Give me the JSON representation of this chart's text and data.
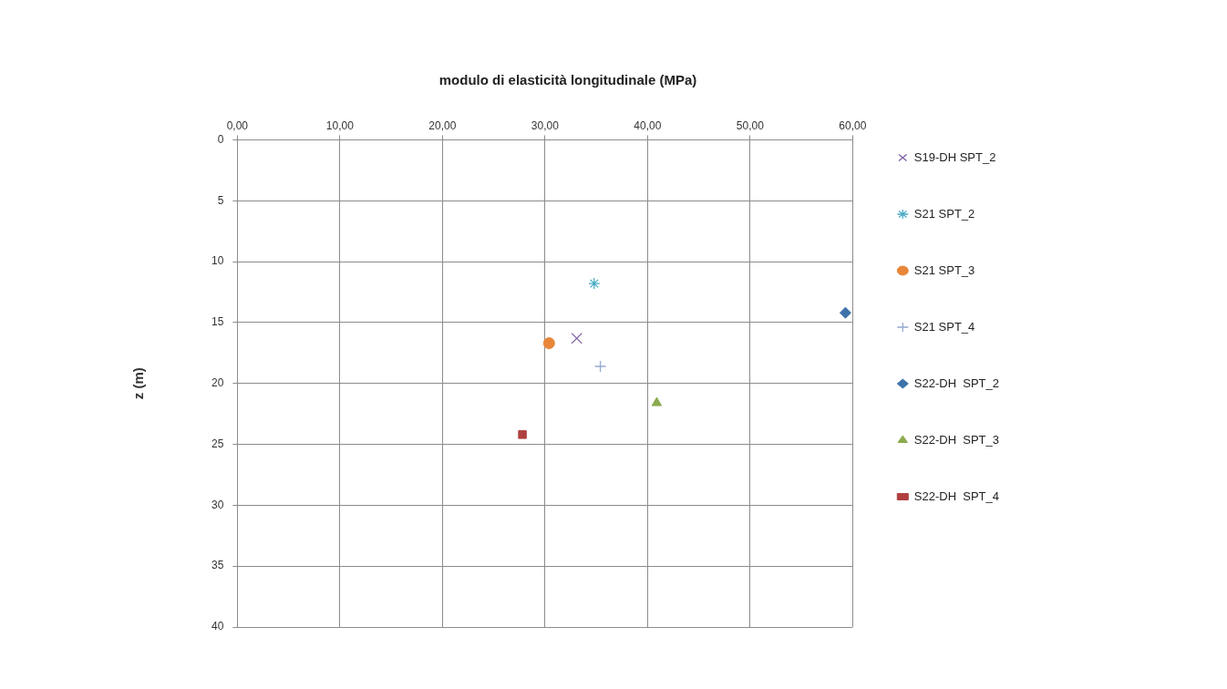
{
  "chart_data": {
    "type": "scatter",
    "title": "modulo di elasticità longitudinale (MPa)",
    "ylabel": "z (m)",
    "xlim": [
      0,
      60
    ],
    "xticks": [
      {
        "value": 0,
        "label": "0,00"
      },
      {
        "value": 10,
        "label": "10,00"
      },
      {
        "value": 20,
        "label": "20,00"
      },
      {
        "value": 30,
        "label": "30,00"
      },
      {
        "value": 40,
        "label": "40,00"
      },
      {
        "value": 50,
        "label": "50,00"
      },
      {
        "value": 60,
        "label": "60,00"
      }
    ],
    "ylim": [
      40,
      0
    ],
    "yticks": [
      0,
      5,
      10,
      15,
      20,
      25,
      30,
      35,
      40
    ],
    "grid": true,
    "legend": "right",
    "series": [
      {
        "name": "S19-DH SPT_2",
        "color": "#7e5ea0",
        "marker": "x",
        "x": [
          33.1
        ],
        "values": [
          16.3
        ]
      },
      {
        "name": "S21 SPT_2",
        "color": "#4bacc6",
        "marker": "cross",
        "x": [
          34.8
        ],
        "values": [
          11.8
        ]
      },
      {
        "name": "S21 SPT_3",
        "color": "#e8873a",
        "marker": "circle",
        "x": [
          30.4
        ],
        "values": [
          16.7
        ]
      },
      {
        "name": "S21 SPT_4",
        "color": "#95a8d0",
        "marker": "plus",
        "x": [
          35.4
        ],
        "values": [
          18.6
        ]
      },
      {
        "name": "S22-DH  SPT_2",
        "color": "#3d72aa",
        "marker": "diamond",
        "x": [
          59.3
        ],
        "values": [
          14.2
        ]
      },
      {
        "name": "S22-DH  SPT_3",
        "color": "#8caa4e",
        "marker": "triangle",
        "x": [
          40.9
        ],
        "values": [
          21.6
        ]
      },
      {
        "name": "S22-DH  SPT_4",
        "color": "#b04040",
        "marker": "square",
        "x": [
          27.8
        ],
        "values": [
          24.2
        ]
      }
    ]
  }
}
